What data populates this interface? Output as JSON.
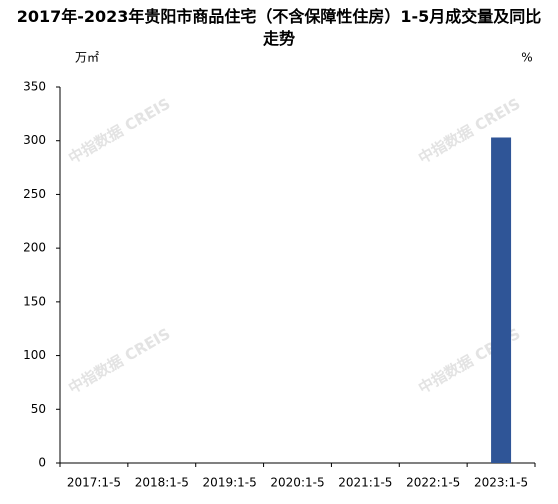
{
  "chart_data": {
    "type": "bar",
    "title": "2017年-2023年贵阳市商品住宅（不含保障性住房）1-5月成交量及同比走势",
    "y_unit": "万㎡",
    "y2_unit": "%",
    "watermark": "中指数据 CREIS",
    "categories": [
      "2017:1-5",
      "2018:1-5",
      "2019:1-5",
      "2020:1-5",
      "2021:1-5",
      "2022:1-5",
      "2023:1-5"
    ],
    "values": [
      null,
      null,
      null,
      null,
      null,
      null,
      303
    ],
    "color": "#2f5597",
    "ylim": [
      0,
      350
    ],
    "yticks": [
      0,
      50,
      100,
      150,
      200,
      250,
      300,
      350
    ],
    "grid": false
  }
}
